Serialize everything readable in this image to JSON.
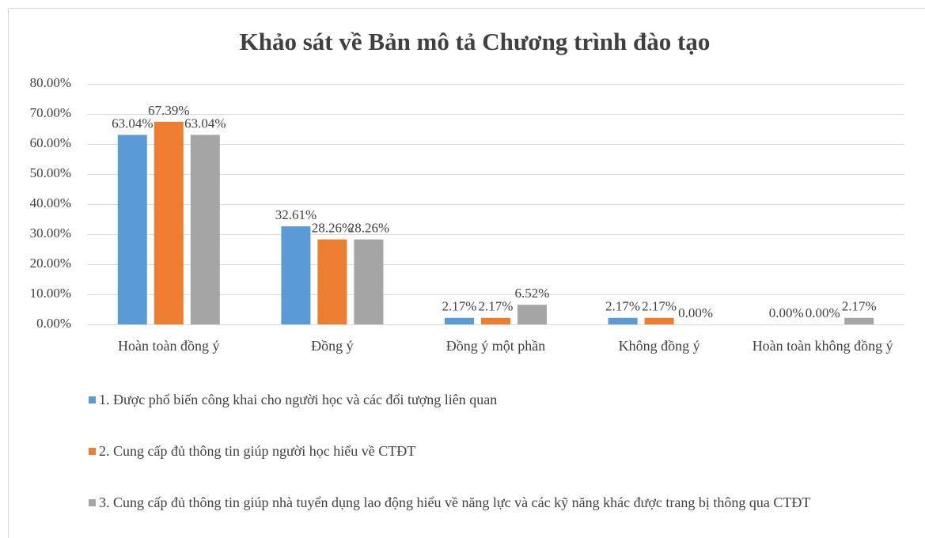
{
  "chart_data": {
    "type": "bar",
    "title": "Khảo sát về Bản mô tả Chương trình đào tạo",
    "categories": [
      "Hoàn toàn đồng ý",
      "Đồng ý",
      "Đồng ý một phần",
      "Không đồng ý",
      "Hoàn toàn không đồng ý"
    ],
    "series": [
      {
        "name": "1. Được phổ biến công khai cho người học và các đối tượng liên quan",
        "color": "#5b9bd5",
        "values": [
          63.04,
          32.61,
          2.17,
          2.17,
          0
        ],
        "value_labels": [
          "63.04%",
          "32.61%",
          "2.17%",
          "2.17%",
          "0.00%"
        ]
      },
      {
        "name": "2. Cung cấp đủ thông tin giúp người học hiểu về CTĐT",
        "color": "#ed7d31",
        "values": [
          67.39,
          28.26,
          2.17,
          2.17,
          0
        ],
        "value_labels": [
          "67.39%",
          "28.26%",
          "2.17%",
          "2.17%",
          "0.00%"
        ]
      },
      {
        "name": "3. Cung cấp đủ thông tin giúp nhà tuyển dụng lao động hiểu về năng lực và các kỹ năng khác được trang bị thông qua CTĐT",
        "color": "#a5a5a5",
        "values": [
          63.04,
          28.26,
          6.52,
          0,
          2.17
        ],
        "value_labels": [
          "63.04%",
          "28.26%",
          "6.52%",
          "0.00%",
          "2.17%"
        ]
      }
    ],
    "ylim": [
      0,
      80
    ],
    "yticks": [
      {
        "value": 0,
        "label": "0.00%"
      },
      {
        "value": 10,
        "label": "10.00%"
      },
      {
        "value": 20,
        "label": "20.00%"
      },
      {
        "value": 30,
        "label": "30.00%"
      },
      {
        "value": 40,
        "label": "40.00%"
      },
      {
        "value": 50,
        "label": "50.00%"
      },
      {
        "value": 60,
        "label": "60.00%"
      },
      {
        "value": 70,
        "label": "70.00%"
      },
      {
        "value": 80,
        "label": "80.00%"
      }
    ],
    "grid": true,
    "legend": "bottom"
  }
}
